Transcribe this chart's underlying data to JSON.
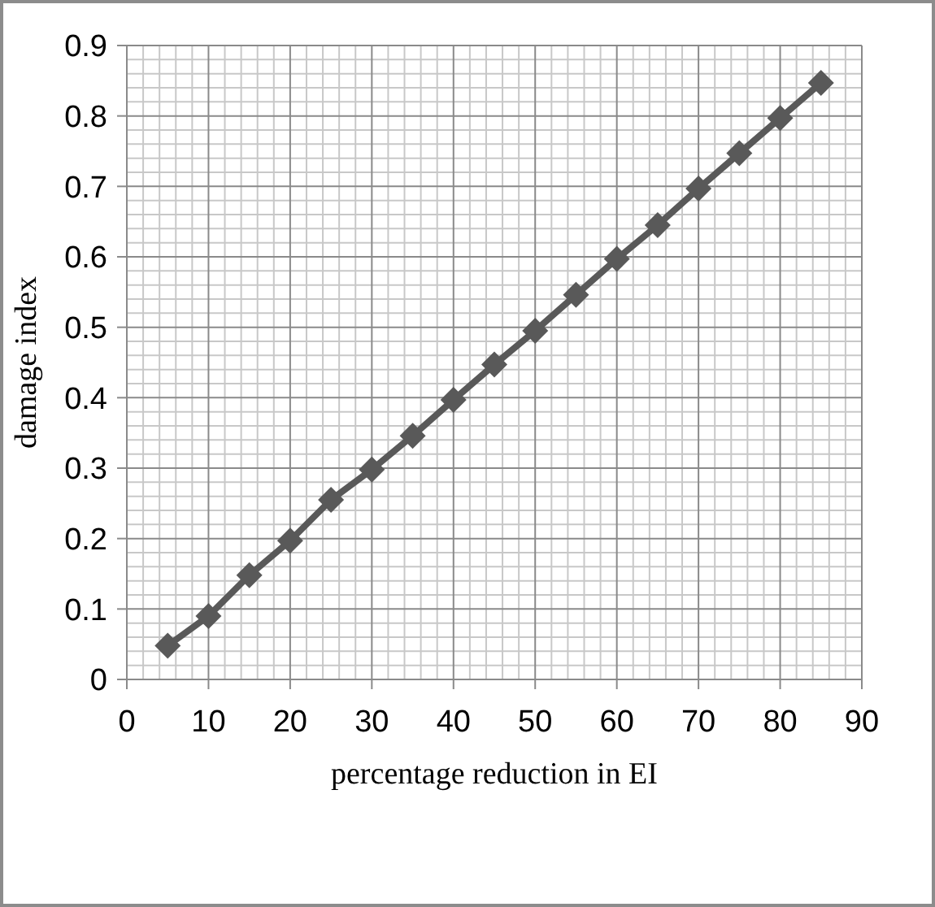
{
  "chart_data": {
    "type": "line",
    "xlabel": "percentage reduction in EI",
    "ylabel": "damage index",
    "x": [
      5,
      10,
      15,
      20,
      25,
      30,
      35,
      40,
      45,
      50,
      55,
      60,
      65,
      70,
      75,
      80,
      85
    ],
    "series": [
      {
        "color": "#595959",
        "values": [
          0.048,
          0.09,
          0.148,
          0.197,
          0.255,
          0.298,
          0.346,
          0.397,
          0.447,
          0.495,
          0.546,
          0.597,
          0.645,
          0.697,
          0.747,
          0.797,
          0.847
        ]
      }
    ],
    "xlim": [
      0,
      90
    ],
    "xticks": [
      0,
      10,
      20,
      30,
      40,
      50,
      60,
      70,
      80,
      90
    ],
    "ylim": [
      0,
      0.9
    ],
    "yticks": [
      0,
      0.1,
      0.2,
      0.3,
      0.4,
      0.5,
      0.6,
      0.7,
      0.8,
      0.9
    ],
    "grid": true,
    "marker": "diamond",
    "line_style": "solid"
  }
}
